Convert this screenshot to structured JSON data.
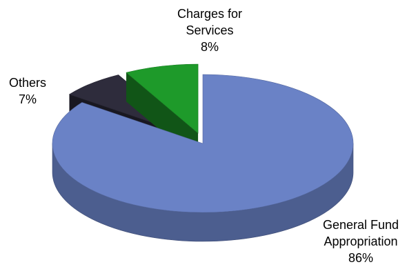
{
  "chart_data": {
    "type": "pie",
    "title": "",
    "three_d": true,
    "slices": [
      {
        "label_lines": [
          "General Fund",
          "Appropriation"
        ],
        "percent_label": "86%",
        "value": 86,
        "color": "#6a82c6"
      },
      {
        "label_lines": [
          "Others"
        ],
        "percent_label": "7%",
        "value": 7,
        "color": "#2e2c3c"
      },
      {
        "label_lines": [
          "Charges for",
          "Services"
        ],
        "percent_label": "8%",
        "value": 8,
        "color": "#1e9a2a"
      }
    ]
  }
}
